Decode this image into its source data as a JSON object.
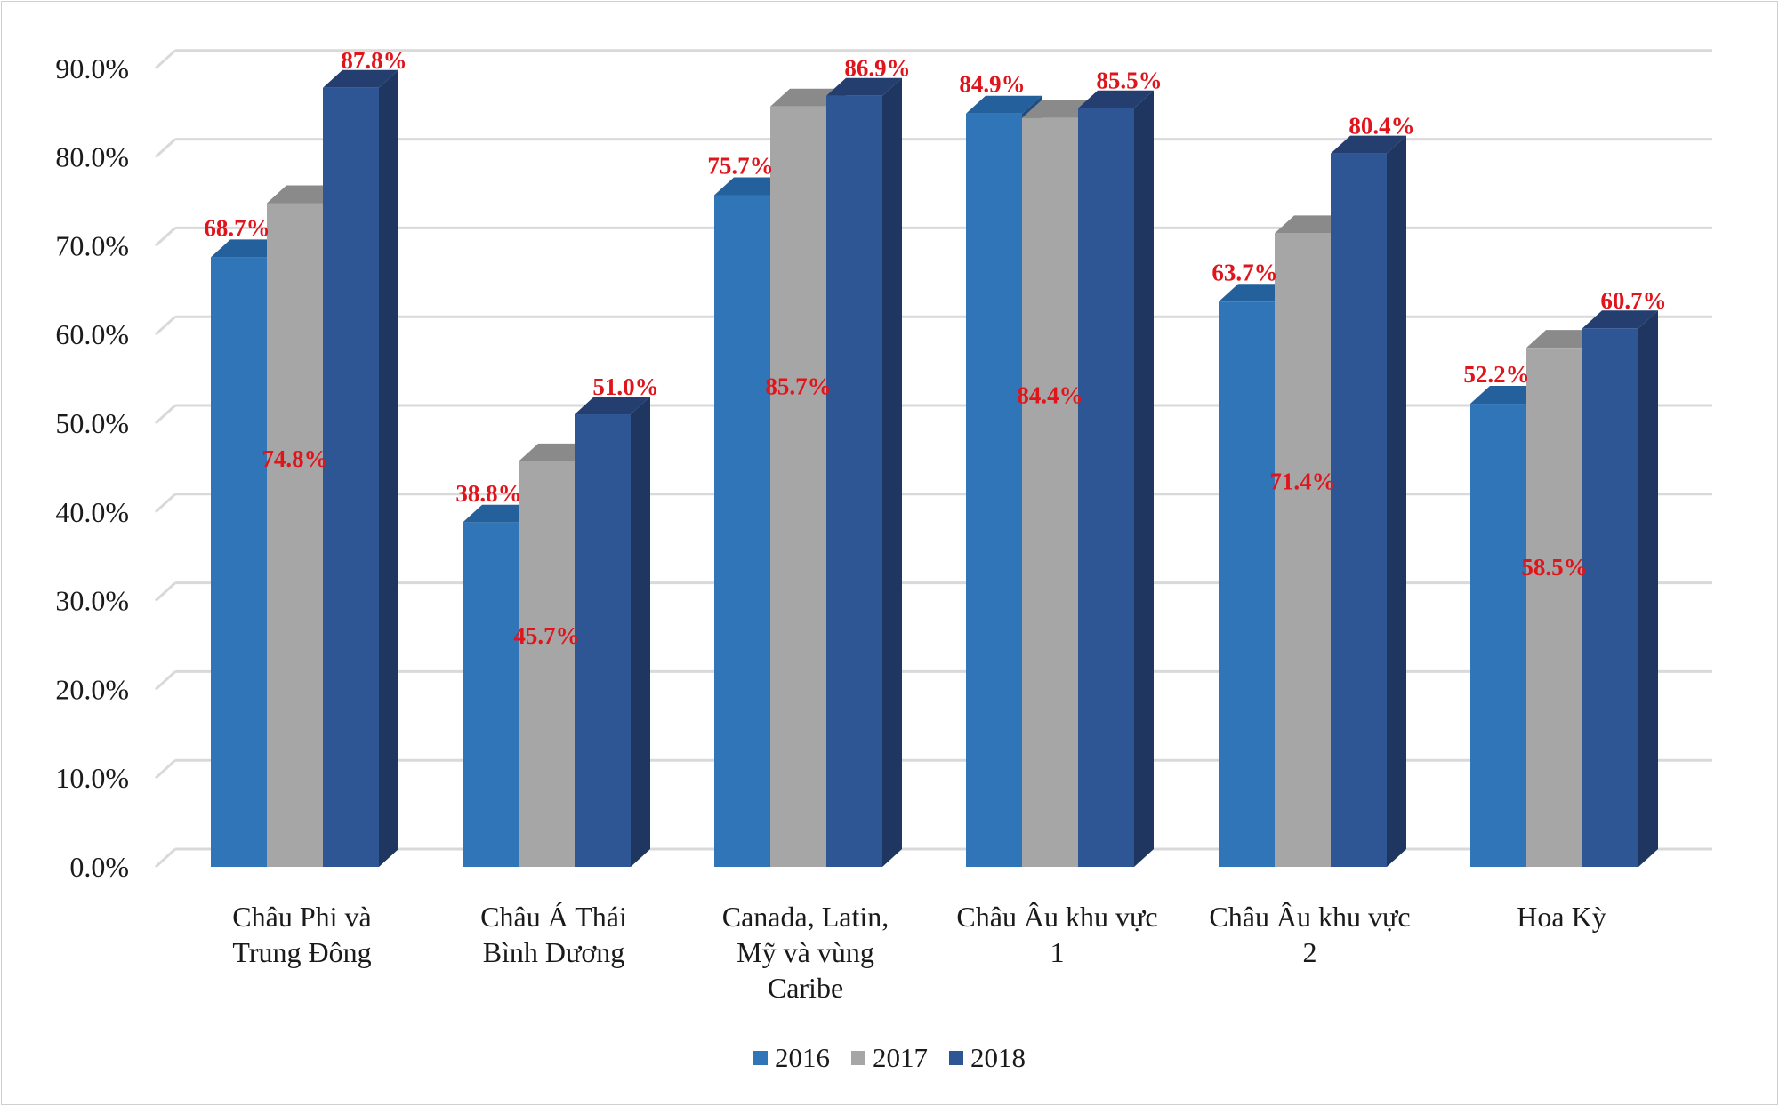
{
  "chart_data": {
    "type": "bar",
    "title": "",
    "xlabel": "",
    "ylabel": "",
    "ylim": [
      0,
      90
    ],
    "y_ticks": [
      "0.0%",
      "10.0%",
      "20.0%",
      "30.0%",
      "40.0%",
      "50.0%",
      "60.0%",
      "70.0%",
      "80.0%",
      "90.0%"
    ],
    "grid": true,
    "legend_position": "bottom",
    "categories": [
      [
        "Châu Phi và",
        "Trung Đông"
      ],
      [
        "Châu Á Thái",
        "Bình Dương"
      ],
      [
        "Canada, Latin,",
        "Mỹ và vùng",
        "Caribe"
      ],
      [
        "Châu Âu khu vực",
        "1"
      ],
      [
        "Châu Âu khu vực",
        "2"
      ],
      [
        "Hoa Kỳ"
      ]
    ],
    "series": [
      {
        "name": "2016",
        "values": [
          68.7,
          38.8,
          75.7,
          84.9,
          63.7,
          52.2
        ],
        "labels": [
          "68.7%",
          "38.8%",
          "75.7%",
          "84.9%",
          "63.7%",
          "52.2%"
        ]
      },
      {
        "name": "2017",
        "values": [
          74.8,
          45.7,
          85.7,
          84.4,
          71.4,
          58.5
        ],
        "labels": [
          "74.8%",
          "45.7%",
          "85.7%",
          "84.4%",
          "71.4%",
          "58.5%"
        ]
      },
      {
        "name": "2018",
        "values": [
          87.8,
          51.0,
          86.9,
          85.5,
          80.4,
          60.7
        ],
        "labels": [
          "87.8%",
          "51.0%",
          "86.9%",
          "85.5%",
          "80.4%",
          "60.7%"
        ]
      }
    ],
    "colors": {
      "2016": {
        "front": "#2f75b8",
        "side": "#1f4f80",
        "top": "#24609c"
      },
      "2017": {
        "front": "#a6a6a6",
        "side": "#6e6e6e",
        "top": "#8a8a8a"
      },
      "2018": {
        "front": "#2e5695",
        "side": "#1e3660",
        "top": "#243f6f"
      }
    },
    "label_color": "#e0151c"
  }
}
